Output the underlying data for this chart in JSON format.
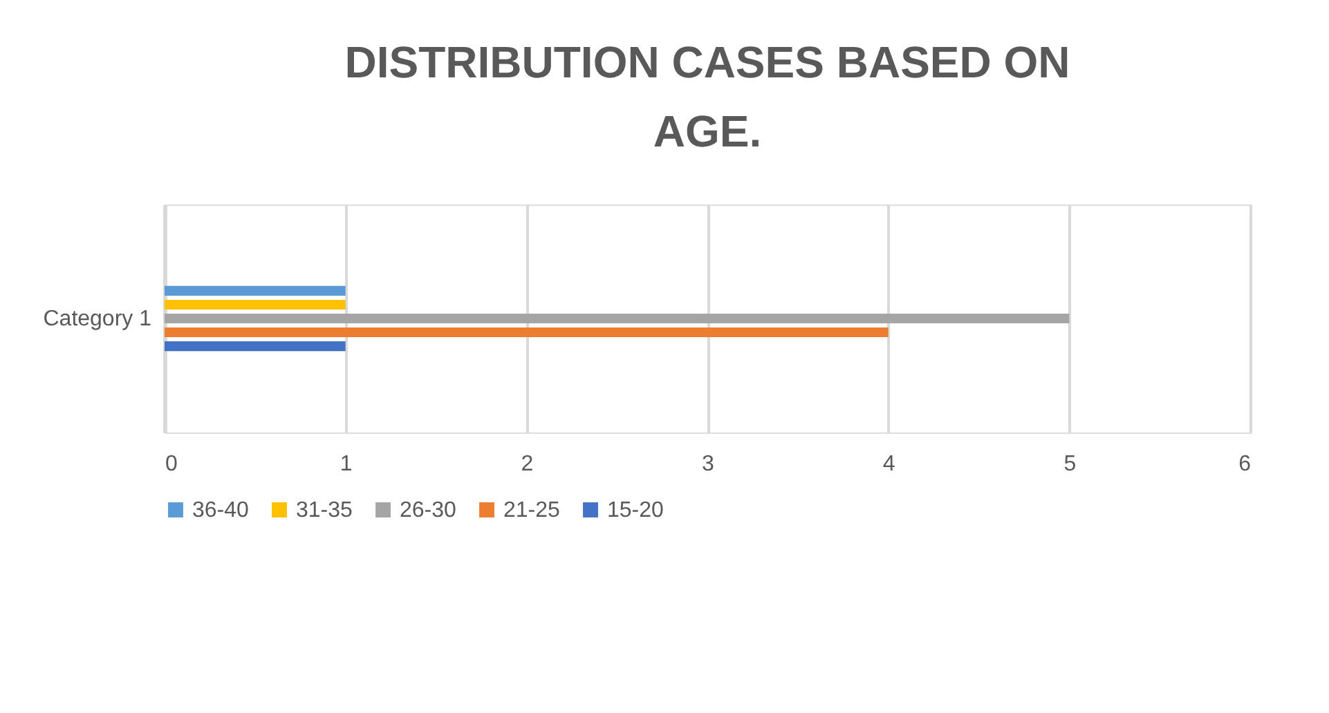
{
  "chart_data": {
    "type": "bar",
    "orientation": "horizontal",
    "title": "DISTRIBUTION CASES BASED ON AGE.",
    "categories": [
      "Category 1"
    ],
    "series": [
      {
        "name": "36-40",
        "color": "#5b9bd5",
        "values": [
          1
        ]
      },
      {
        "name": "31-35",
        "color": "#ffc000",
        "values": [
          1
        ]
      },
      {
        "name": "26-30",
        "color": "#a5a5a5",
        "values": [
          5
        ]
      },
      {
        "name": "21-25",
        "color": "#ed7d31",
        "values": [
          4
        ]
      },
      {
        "name": "15-20",
        "color": "#4472c4",
        "values": [
          1
        ]
      }
    ],
    "xlim": [
      0,
      6
    ],
    "xticks": [
      0,
      1,
      2,
      3,
      4,
      5,
      6
    ],
    "grid": "x",
    "legend": "bottom"
  }
}
